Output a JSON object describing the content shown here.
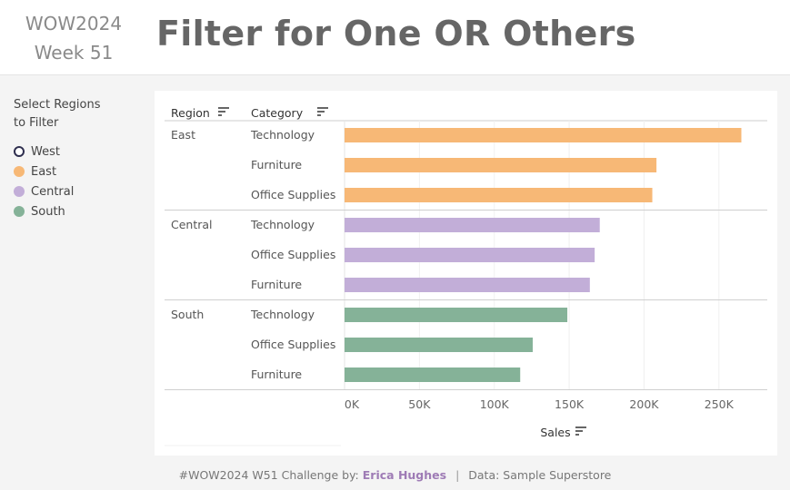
{
  "header": {
    "wow_line1": "WOW2024",
    "wow_line2": "Week 51",
    "title": "Filter for One OR Others"
  },
  "legend": {
    "title": "Select Regions\nto Filter",
    "items": [
      {
        "label": "West",
        "color": "#2f2f4f",
        "selected": true
      },
      {
        "label": "East",
        "color": "#f7b876",
        "selected": false
      },
      {
        "label": "Central",
        "color": "#c2aed8",
        "selected": false
      },
      {
        "label": "South",
        "color": "#85b298",
        "selected": false
      }
    ]
  },
  "chart_data": {
    "type": "bar",
    "orientation": "horizontal",
    "columns": [
      "Region",
      "Category"
    ],
    "xlabel": "Sales",
    "xlim": [
      0,
      275000
    ],
    "x_ticks": [
      "0K",
      "50K",
      "100K",
      "150K",
      "200K",
      "250K"
    ],
    "tick_values": [
      0,
      50000,
      100000,
      150000,
      200000,
      250000
    ],
    "groups": [
      {
        "region": "East",
        "color": "#f7b876",
        "bars": [
          {
            "category": "Technology",
            "value": 264973
          },
          {
            "category": "Furniture",
            "value": 208291
          },
          {
            "category": "Office Supplies",
            "value": 205516
          }
        ]
      },
      {
        "region": "Central",
        "color": "#c2aed8",
        "bars": [
          {
            "category": "Technology",
            "value": 170416
          },
          {
            "category": "Office Supplies",
            "value": 167026
          },
          {
            "category": "Furniture",
            "value": 163797
          }
        ]
      },
      {
        "region": "South",
        "color": "#85b298",
        "bars": [
          {
            "category": "Technology",
            "value": 148771
          },
          {
            "category": "Office Supplies",
            "value": 125651
          },
          {
            "category": "Furniture",
            "value": 117299
          }
        ]
      }
    ]
  },
  "footer": {
    "prefix": "#WOW2024 W51 Challenge by:",
    "author": "Erica Hughes",
    "separator": "|",
    "data_source": "Data: Sample Superstore"
  }
}
